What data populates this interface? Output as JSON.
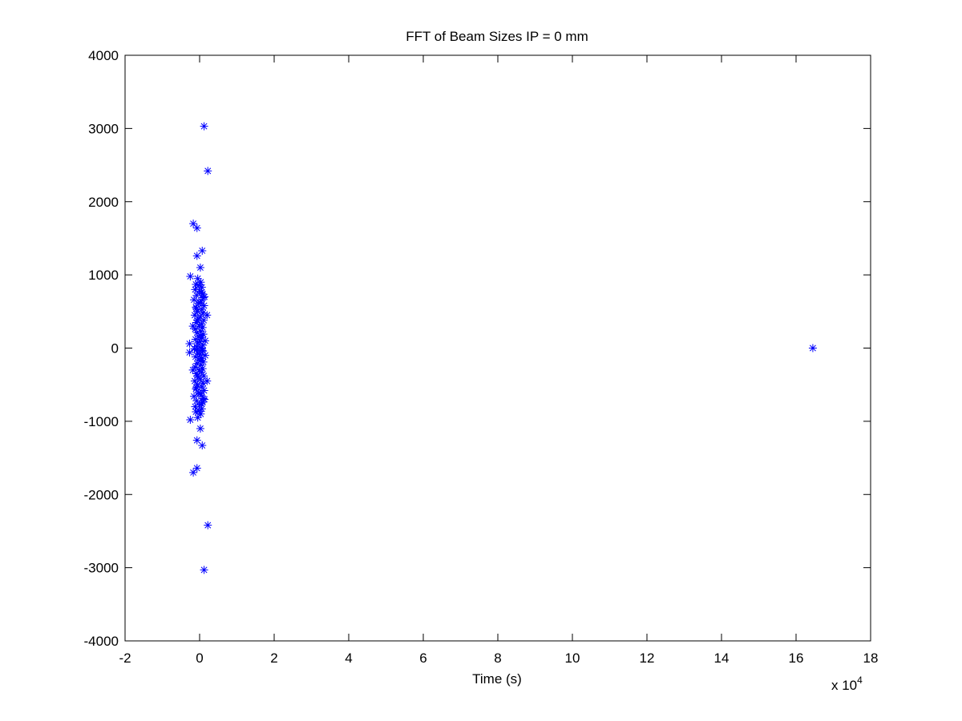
{
  "chart_data": {
    "type": "scatter",
    "title": "FFT of Beam Sizes IP = 0 mm",
    "xlabel": "Time (s)",
    "ylabel": "",
    "x_exponent_label": "x 10",
    "x_exponent_power": "4",
    "xlim": [
      -2,
      18
    ],
    "ylim": [
      -4000,
      4000
    ],
    "x_scale_factor": 10000,
    "x_ticks": [
      -2,
      0,
      2,
      4,
      6,
      8,
      10,
      12,
      14,
      16,
      18
    ],
    "x_tick_labels": [
      "-2",
      "0",
      "2",
      "4",
      "6",
      "8",
      "10",
      "12",
      "14",
      "16",
      "18"
    ],
    "y_ticks": [
      -4000,
      -3000,
      -2000,
      -1000,
      0,
      1000,
      2000,
      3000,
      4000
    ],
    "y_tick_labels": [
      "-4000",
      "-3000",
      "-2000",
      "-1000",
      "0",
      "1000",
      "2000",
      "3000",
      "4000"
    ],
    "grid": false,
    "marker": "asterisk",
    "marker_color": "#0000ff",
    "series": [
      {
        "points": [
          [
            16.45,
            0
          ],
          [
            0.12,
            3030
          ],
          [
            0.12,
            -3030
          ],
          [
            0.22,
            2420
          ],
          [
            0.22,
            -2420
          ],
          [
            -0.17,
            1700
          ],
          [
            -0.17,
            -1700
          ],
          [
            -0.07,
            1640
          ],
          [
            -0.07,
            -1640
          ],
          [
            0.07,
            1330
          ],
          [
            0.07,
            -1330
          ],
          [
            -0.07,
            1260
          ],
          [
            -0.07,
            -1260
          ],
          [
            0.02,
            1100
          ],
          [
            0.02,
            -1100
          ],
          [
            -0.25,
            980
          ],
          [
            -0.25,
            -980
          ],
          [
            -0.27,
            60
          ],
          [
            -0.27,
            -60
          ],
          [
            0.2,
            450
          ],
          [
            0.2,
            -450
          ],
          [
            -0.05,
            950
          ],
          [
            0.03,
            900
          ],
          [
            -0.1,
            870
          ],
          [
            0.06,
            830
          ],
          [
            -0.12,
            800
          ],
          [
            0.0,
            780
          ],
          [
            0.08,
            740
          ],
          [
            -0.08,
            720
          ],
          [
            0.1,
            690
          ],
          [
            -0.15,
            660
          ],
          [
            0.04,
            640
          ],
          [
            -0.03,
            610
          ],
          [
            0.12,
            580
          ],
          [
            -0.1,
            560
          ],
          [
            0.06,
            530
          ],
          [
            -0.06,
            500
          ],
          [
            0.09,
            480
          ],
          [
            -0.13,
            450
          ],
          [
            0.02,
            430
          ],
          [
            -0.04,
            400
          ],
          [
            0.11,
            380
          ],
          [
            -0.09,
            350
          ],
          [
            0.05,
            330
          ],
          [
            -0.01,
            300
          ],
          [
            0.08,
            280
          ],
          [
            -0.12,
            260
          ],
          [
            0.03,
            230
          ],
          [
            -0.07,
            210
          ],
          [
            0.1,
            190
          ],
          [
            -0.02,
            160
          ],
          [
            0.06,
            140
          ],
          [
            -0.11,
            120
          ],
          [
            0.01,
            90
          ],
          [
            -0.05,
            70
          ],
          [
            0.09,
            40
          ],
          [
            -0.08,
            20
          ],
          [
            0.04,
            0
          ],
          [
            -0.14,
            -10
          ],
          [
            0.07,
            -30
          ],
          [
            -0.05,
            -950
          ],
          [
            0.03,
            -900
          ],
          [
            -0.1,
            -870
          ],
          [
            0.06,
            -830
          ],
          [
            -0.12,
            -800
          ],
          [
            0.0,
            -780
          ],
          [
            0.08,
            -740
          ],
          [
            -0.08,
            -720
          ],
          [
            0.1,
            -690
          ],
          [
            -0.15,
            -660
          ],
          [
            0.04,
            -640
          ],
          [
            -0.03,
            -610
          ],
          [
            0.12,
            -580
          ],
          [
            -0.1,
            -560
          ],
          [
            0.06,
            -530
          ],
          [
            -0.06,
            -500
          ],
          [
            0.09,
            -480
          ],
          [
            -0.13,
            -450
          ],
          [
            0.02,
            -430
          ],
          [
            -0.04,
            -400
          ],
          [
            0.11,
            -380
          ],
          [
            -0.09,
            -350
          ],
          [
            0.05,
            -330
          ],
          [
            -0.01,
            -300
          ],
          [
            0.08,
            -280
          ],
          [
            -0.12,
            -260
          ],
          [
            0.03,
            -230
          ],
          [
            -0.07,
            -210
          ],
          [
            0.1,
            -190
          ],
          [
            -0.02,
            -160
          ],
          [
            0.06,
            -140
          ],
          [
            -0.11,
            -120
          ],
          [
            0.01,
            -90
          ],
          [
            -0.05,
            -70
          ],
          [
            0.09,
            -40
          ],
          [
            -0.08,
            -20
          ],
          [
            -0.02,
            860
          ],
          [
            0.01,
            620
          ],
          [
            -0.06,
            380
          ],
          [
            0.03,
            170
          ],
          [
            -0.09,
            540
          ],
          [
            0.05,
            760
          ],
          [
            -0.02,
            -860
          ],
          [
            0.01,
            -620
          ],
          [
            -0.06,
            -380
          ],
          [
            0.03,
            -170
          ],
          [
            -0.09,
            -540
          ],
          [
            0.05,
            -760
          ],
          [
            0.13,
            700
          ],
          [
            0.13,
            -700
          ],
          [
            -0.18,
            300
          ],
          [
            -0.18,
            -300
          ],
          [
            0.15,
            100
          ],
          [
            0.15,
            -100
          ]
        ]
      }
    ]
  }
}
